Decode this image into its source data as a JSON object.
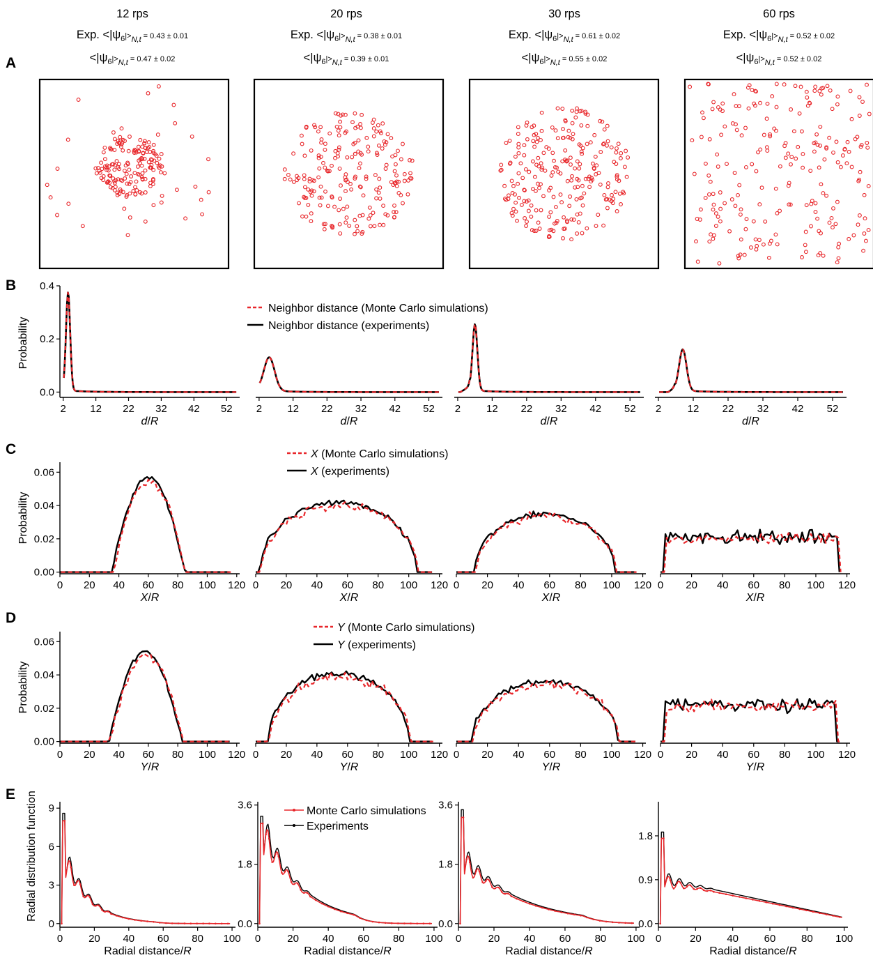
{
  "colors": {
    "sim": "#e8262a",
    "exp": "#000000",
    "frame": "#000000"
  },
  "panel_letters": [
    "A",
    "B",
    "C",
    "D",
    "E"
  ],
  "columns": [
    {
      "title": "12 rps",
      "exp_line": "Exp. <|ψ6|>N,t = 0.43 ± 0.01",
      "exp_pre": "Exp. <|ψ",
      "exp_sub": "6",
      "exp_mid": "|>",
      "exp_sub2": "N,t",
      "exp_val": " = 0.43 ± 0.01",
      "sim_pre": "<|ψ",
      "sim_sub": "6",
      "sim_mid": "|>",
      "sim_sub2": "N,t",
      "sim_val": " = 0.47 ± 0.02"
    },
    {
      "title": "20 rps",
      "exp_pre": "Exp. <|ψ",
      "exp_sub": "6",
      "exp_mid": "|>",
      "exp_sub2": "N,t",
      "exp_val": " = 0.38 ± 0.01",
      "sim_pre": "<|ψ",
      "sim_sub": "6",
      "sim_mid": "|>",
      "sim_sub2": "N,t",
      "sim_val": " = 0.39 ± 0.01"
    },
    {
      "title": "30 rps",
      "exp_pre": "Exp. <|ψ",
      "exp_sub": "6",
      "exp_mid": "|>",
      "exp_sub2": "N,t",
      "exp_val": " = 0.61 ± 0.02",
      "sim_pre": "<|ψ",
      "sim_sub": "6",
      "sim_mid": "|>",
      "sim_sub2": "N,t",
      "sim_val": " = 0.55 ± 0.02"
    },
    {
      "title": "60 rps",
      "exp_pre": "Exp. <|ψ",
      "exp_sub": "6",
      "exp_mid": "|>",
      "exp_sub2": "N,t",
      "exp_val": " = 0.52 ± 0.02",
      "sim_pre": "<|ψ",
      "sim_sub": "6",
      "sim_mid": "|>",
      "sim_sub2": "N,t",
      "sim_val": " = 0.52 ± 0.02"
    }
  ],
  "chart_data": [
    {
      "panel": "A",
      "type": "scatter",
      "description_of_marks": "particle positions, open red circles",
      "layouts": [
        {
          "shape": "sparse-cluster",
          "count": 190
        },
        {
          "shape": "loose-disk",
          "count": 215
        },
        {
          "shape": "dense-disk",
          "count": 250
        },
        {
          "shape": "filled-square",
          "count": 230
        }
      ]
    },
    {
      "panel": "B",
      "type": "line",
      "ylabel": "Probability",
      "xlabel": "d/R",
      "ylim": [
        0,
        0.4
      ],
      "yticks": [
        "0.0",
        "0.2",
        "0.4"
      ],
      "xticks": [
        "2",
        "12",
        "22",
        "32",
        "42",
        "52"
      ],
      "xlim": [
        2,
        56
      ],
      "legend": [
        "Neighbor distance (Monte Carlo simulations)",
        "Neighbor distance (experiments)"
      ],
      "series": [
        {
          "peak_x": 3.5,
          "peak_y": 0.37,
          "width": 0.9
        },
        {
          "peak_x": 5.0,
          "peak_y": 0.125,
          "width": 2.2
        },
        {
          "peak_x": 7.0,
          "peak_y": 0.25,
          "width": 1.0
        },
        {
          "peak_x": 9.0,
          "peak_y": 0.155,
          "width": 1.5
        }
      ]
    },
    {
      "panel": "C",
      "type": "line",
      "ylabel": "Probability",
      "xlabel": "X/R",
      "xlim": [
        0,
        120
      ],
      "ylim": [
        0,
        0.06
      ],
      "yticks": [
        "0.00",
        "0.02",
        "0.04",
        "0.06"
      ],
      "xticks": [
        "0",
        "20",
        "40",
        "60",
        "80",
        "100",
        "120"
      ],
      "legend_sim": "(Monte Carlo simulations)",
      "legend_exp": "(experiments)",
      "legend_var": "X",
      "series": [
        {
          "kind": "bell",
          "center": 60,
          "halfwidth": 22,
          "peak": 0.057
        },
        {
          "kind": "dome",
          "lo": 3,
          "hi": 105,
          "peak": 0.042
        },
        {
          "kind": "dome",
          "lo": 12,
          "hi": 102,
          "peak": 0.035
        },
        {
          "kind": "flat",
          "lo": 2,
          "hi": 115,
          "level": 0.021
        }
      ]
    },
    {
      "panel": "D",
      "type": "line",
      "ylabel": "Probability",
      "xlabel": "Y/R",
      "xlim": [
        0,
        120
      ],
      "ylim": [
        0,
        0.06
      ],
      "yticks": [
        "0.00",
        "0.02",
        "0.04",
        "0.06"
      ],
      "xticks": [
        "0",
        "20",
        "40",
        "60",
        "80",
        "100",
        "120"
      ],
      "legend_sim": "(Monte Carlo simulations)",
      "legend_exp": "(experiments)",
      "legend_var": "Y",
      "series": [
        {
          "kind": "bell",
          "center": 58,
          "halfwidth": 22,
          "peak": 0.054
        },
        {
          "kind": "dome",
          "lo": 8,
          "hi": 100,
          "peak": 0.041
        },
        {
          "kind": "dome",
          "lo": 10,
          "hi": 104,
          "peak": 0.036
        },
        {
          "kind": "flat",
          "lo": 2,
          "hi": 112,
          "level": 0.022
        }
      ]
    },
    {
      "panel": "E",
      "type": "line",
      "ylabel": "Radial distribution function",
      "xlabel": "Radial distance/R",
      "xlim": [
        0,
        100
      ],
      "xticks": [
        "0",
        "20",
        "40",
        "60",
        "80",
        "100"
      ],
      "legend": [
        "Monte Carlo simulations",
        "Experiments"
      ],
      "subplots": [
        {
          "ylim": [
            0,
            9.5
          ],
          "yticks": [
            "0",
            "3",
            "6",
            "9"
          ],
          "peak": 8.7,
          "tail": 4.3,
          "decay": 14
        },
        {
          "ylim": [
            0,
            3.7
          ],
          "yticks": [
            "0.0",
            "1.8",
            "3.6"
          ],
          "peak": 3.3,
          "tail": 2.5,
          "decay": 22
        },
        {
          "ylim": [
            0,
            3.7
          ],
          "yticks": [
            "0.0",
            "1.8",
            "3.6"
          ],
          "peak": 3.5,
          "tail": 1.8,
          "decay": 32
        },
        {
          "ylim": [
            0,
            2.5
          ],
          "yticks": [
            "0.0",
            "0.9",
            "1.8"
          ],
          "peak": 1.9,
          "tail": 0.75,
          "decay": 110
        }
      ]
    }
  ]
}
